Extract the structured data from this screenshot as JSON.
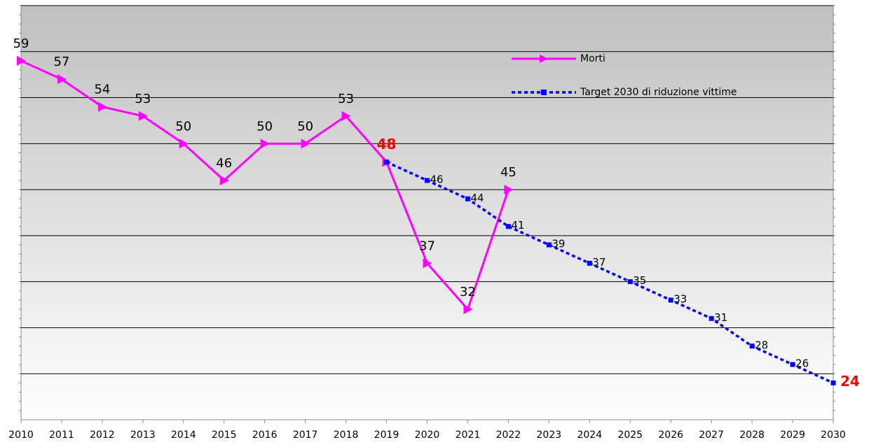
{
  "chart_data": {
    "type": "line",
    "categories": [
      "2010",
      "2011",
      "2012",
      "2013",
      "2014",
      "2015",
      "2016",
      "2017",
      "2018",
      "2019",
      "2020",
      "2021",
      "2022",
      "2023",
      "2024",
      "2025",
      "2026",
      "2027",
      "2028",
      "2029",
      "2030"
    ],
    "series": [
      {
        "name": "Morti",
        "color": "#ff00ff",
        "style": "solid",
        "marker": "triangle",
        "values": [
          59,
          57,
          54,
          53,
          50,
          46,
          50,
          50,
          53,
          48,
          37,
          32,
          45,
          null,
          null,
          null,
          null,
          null,
          null,
          null,
          null
        ],
        "highlight": [
          9
        ]
      },
      {
        "name": "Target 2030 di riduzione vittime",
        "color": "#0000ff",
        "style": "dotted",
        "marker": "square",
        "values": [
          null,
          null,
          null,
          null,
          null,
          null,
          null,
          null,
          null,
          48,
          46,
          44,
          41,
          39,
          37,
          35,
          33,
          31,
          28,
          26,
          24
        ],
        "highlight": [
          20
        ],
        "unlabeled": [
          9
        ]
      }
    ],
    "highlight_color": "#ff0000",
    "ylim": [
      20,
      65
    ],
    "yticks": [
      25,
      30,
      35,
      40,
      45,
      50,
      55,
      60
    ],
    "grid": true
  }
}
